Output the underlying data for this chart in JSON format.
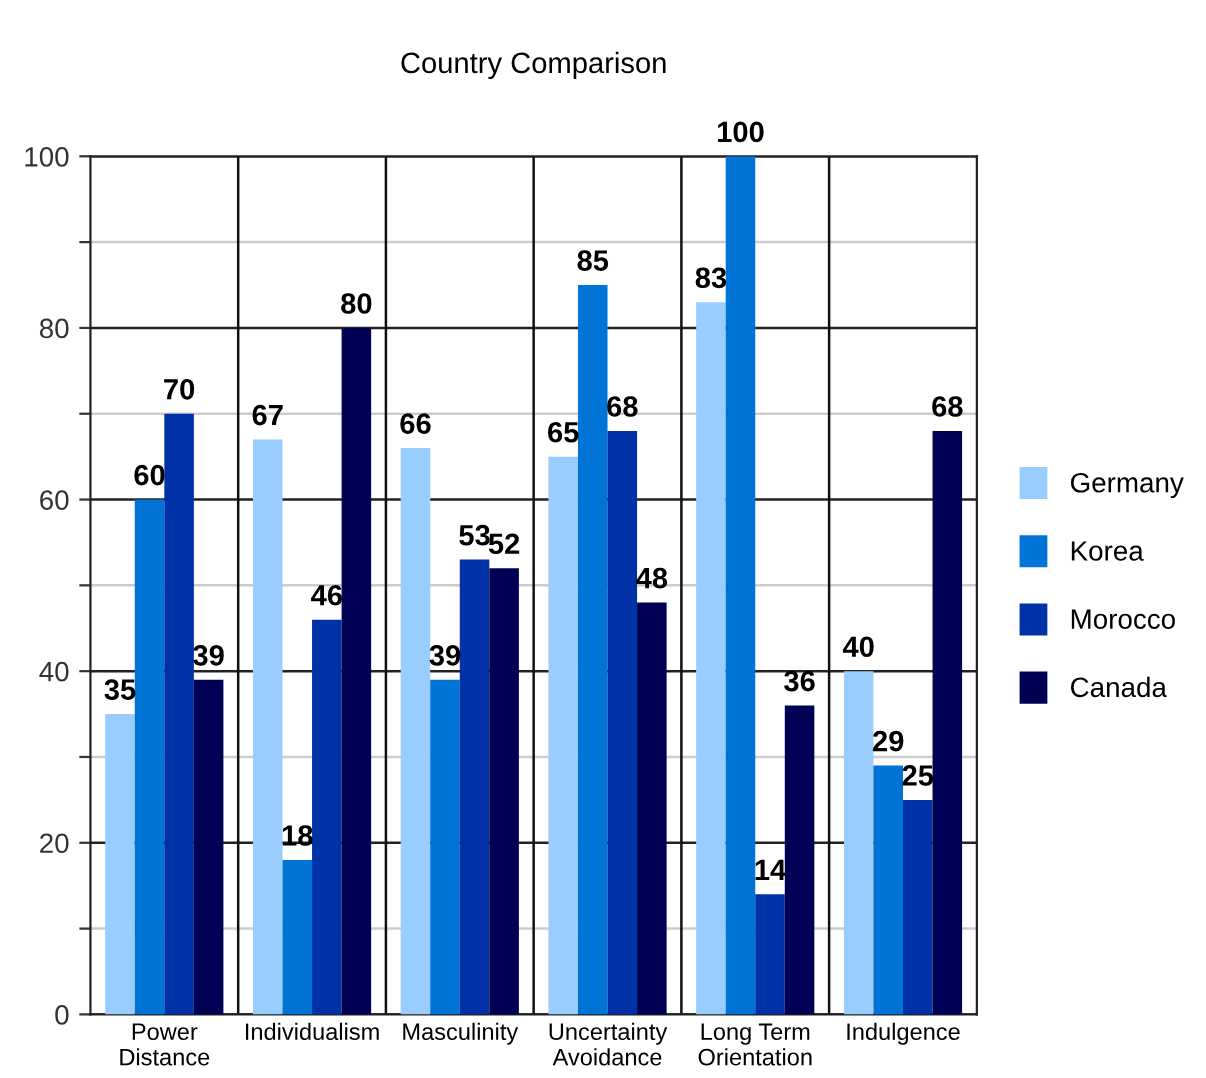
{
  "chart_data": {
    "type": "bar",
    "title": "Country Comparison",
    "categories": [
      "Power\nDistance",
      "Individualism",
      "Masculinity",
      "Uncertainty\nAvoidance",
      "Long Term\nOrientation",
      "Indulgence"
    ],
    "series": [
      {
        "name": "Germany",
        "color": "#99ccff",
        "values": [
          35,
          67,
          66,
          65,
          83,
          40
        ]
      },
      {
        "name": "Korea",
        "color": "#0073d6",
        "values": [
          60,
          18,
          39,
          85,
          100,
          29
        ]
      },
      {
        "name": "Morocco",
        "color": "#0031a6",
        "values": [
          70,
          46,
          53,
          68,
          14,
          25
        ]
      },
      {
        "name": "Canada",
        "color": "#000055",
        "values": [
          39,
          80,
          52,
          48,
          36,
          68
        ]
      }
    ],
    "ylim": [
      0,
      100
    ],
    "yticks": [
      0,
      {
        "value": 10,
        "label": null
      },
      20,
      {
        "value": 30,
        "label": null
      },
      40,
      {
        "value": 50,
        "label": null
      },
      60,
      {
        "value": 70,
        "label": null
      },
      80,
      {
        "value": 90,
        "label": null
      },
      100
    ],
    "grid": true,
    "legend": "right",
    "data_labels": true
  }
}
